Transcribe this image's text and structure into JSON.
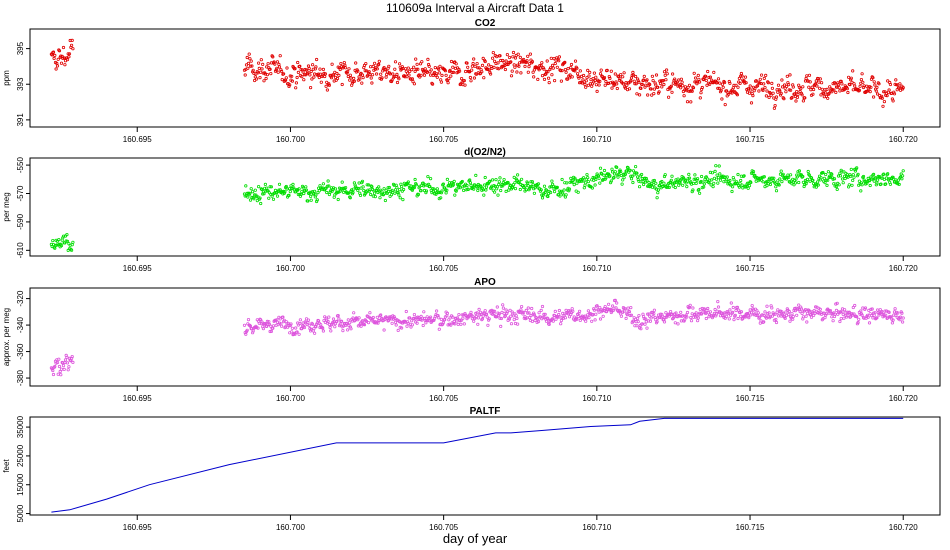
{
  "figure_title": "110609a   Interval a Aircraft Data 1",
  "xlabel": "day of year",
  "x_ticks": [
    "160.695",
    "160.700",
    "160.705",
    "160.710",
    "160.715",
    "160.720"
  ],
  "chart_data": [
    {
      "type": "scatter",
      "title": "CO2",
      "ylabel": "ppm",
      "color": "#e00000",
      "xlim": [
        160.6915,
        160.7212
      ],
      "ylim": [
        390.6,
        396.1
      ],
      "y_ticks": [
        "391",
        "393",
        "395"
      ],
      "x_ticks": [
        160.695,
        160.7,
        160.705,
        160.71,
        160.715,
        160.72
      ],
      "segments": [
        {
          "x": [
            160.6922,
            160.6929
          ],
          "trend": [
            [
              160.6922,
              394.2
            ],
            [
              160.6926,
              394.6
            ],
            [
              160.6929,
              394.8
            ]
          ],
          "noise": 0.7
        },
        {
          "x": [
            160.6985,
            160.72
          ],
          "trend": [
            [
              160.6985,
              394.0
            ],
            [
              160.7,
              393.6
            ],
            [
              160.703,
              393.7
            ],
            [
              160.705,
              393.4
            ],
            [
              160.7068,
              394.2
            ],
            [
              160.709,
              393.9
            ],
            [
              160.71,
              393.3
            ],
            [
              160.712,
              393.0
            ],
            [
              160.715,
              392.9
            ],
            [
              160.718,
              392.8
            ],
            [
              160.72,
              392.5
            ]
          ],
          "noise": 0.55
        }
      ]
    },
    {
      "type": "scatter",
      "title": "d(O2/N2)",
      "ylabel": "per meg",
      "color": "#00dd00",
      "xlim": [
        160.6915,
        160.7212
      ],
      "ylim": [
        -614,
        -545
      ],
      "y_ticks": [
        "-610",
        "-590",
        "-570",
        "-550"
      ],
      "x_ticks": [
        160.695,
        160.7,
        160.705,
        160.71,
        160.715,
        160.72
      ],
      "segments": [
        {
          "x": [
            160.6922,
            160.6929
          ],
          "trend": [
            [
              160.6922,
              -606
            ],
            [
              160.6929,
              -603
            ]
          ],
          "noise": 5
        },
        {
          "x": [
            160.6985,
            160.72
          ],
          "trend": [
            [
              160.6985,
              -570
            ],
            [
              160.705,
              -566
            ],
            [
              160.707,
              -563
            ],
            [
              160.7085,
              -568
            ],
            [
              160.71,
              -560
            ],
            [
              160.711,
              -555
            ],
            [
              160.7118,
              -565
            ],
            [
              160.713,
              -561
            ],
            [
              160.72,
              -559
            ]
          ],
          "noise": 5
        }
      ]
    },
    {
      "type": "scatter",
      "title": "APO",
      "ylabel": "approx. per meg",
      "color": "#dd55dd",
      "xlim": [
        160.6915,
        160.7212
      ],
      "ylim": [
        -386,
        -312
      ],
      "y_ticks": [
        "-380",
        "-360",
        "-340",
        "-320"
      ],
      "x_ticks": [
        160.695,
        160.7,
        160.705,
        160.71,
        160.715,
        160.72
      ],
      "segments": [
        {
          "x": [
            160.6922,
            160.6929
          ],
          "trend": [
            [
              160.6922,
              -372
            ],
            [
              160.6929,
              -367
            ]
          ],
          "noise": 6
        },
        {
          "x": [
            160.6985,
            160.72
          ],
          "trend": [
            [
              160.6985,
              -340
            ],
            [
              160.705,
              -336
            ],
            [
              160.7068,
              -332
            ],
            [
              160.709,
              -334
            ],
            [
              160.7105,
              -328
            ],
            [
              160.7115,
              -336
            ],
            [
              160.713,
              -331
            ],
            [
              160.72,
              -332
            ]
          ],
          "noise": 5
        }
      ]
    },
    {
      "type": "line",
      "title": "PALTF",
      "ylabel": "feet",
      "color": "#0000cc",
      "xlim": [
        160.6915,
        160.7212
      ],
      "ylim": [
        4500,
        38500
      ],
      "y_ticks": [
        "5000",
        "15000",
        "25000",
        "35000"
      ],
      "x_ticks": [
        160.695,
        160.7,
        160.705,
        160.71,
        160.715,
        160.72
      ],
      "x": [
        160.6922,
        160.6928,
        160.694,
        160.6954,
        160.698,
        160.7015,
        160.705,
        160.7067,
        160.7072,
        160.7082,
        160.7098,
        160.7111,
        160.7114,
        160.7122,
        160.715,
        160.72
      ],
      "y": [
        5500,
        6300,
        10000,
        15000,
        22000,
        29500,
        29500,
        33000,
        33000,
        33800,
        35200,
        35800,
        37000,
        38000,
        38000,
        38000
      ]
    }
  ]
}
